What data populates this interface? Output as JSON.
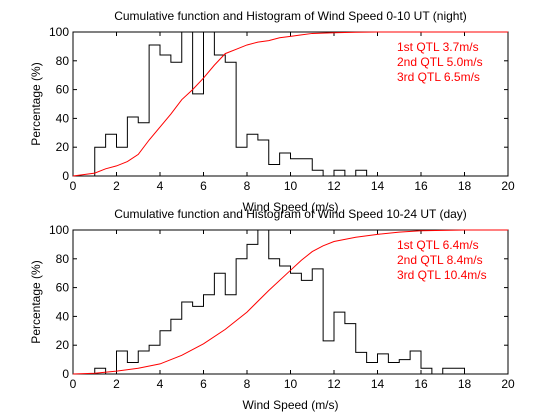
{
  "chart_data": [
    {
      "type": "line",
      "title": "Cumulative function and Histogram of Wind Speed 0-10 UT (night)",
      "xlabel": "Wind Speed (m/s)",
      "ylabel": "Percentage (%)",
      "xlim": [
        0,
        20
      ],
      "ylim": [
        0,
        100
      ],
      "xticks": [
        0,
        2,
        4,
        6,
        8,
        10,
        12,
        14,
        16,
        18,
        20
      ],
      "yticks": [
        0,
        20,
        40,
        60,
        80,
        100
      ],
      "grid": false,
      "annotations": [
        "1st QTL 3.7m/s",
        "2nd QTL 5.0m/s",
        "3rd QTL 6.5m/s"
      ],
      "annotation_color": "#ff0000",
      "series": [
        {
          "kind": "histogram-step",
          "color": "#000000",
          "bin_width": 0.5,
          "bin_starts": [
            1.0,
            1.5,
            2.0,
            2.5,
            3.0,
            3.5,
            4.0,
            4.5,
            5.0,
            5.5,
            6.0,
            6.5,
            7.0,
            7.5,
            8.0,
            8.5,
            9.0,
            9.5,
            10.0,
            10.5,
            11.0,
            11.5,
            12.0,
            12.5,
            13.0,
            13.5,
            14.0
          ],
          "values": [
            20,
            29,
            20,
            41,
            37,
            91,
            84,
            79,
            100,
            57,
            100,
            84,
            79,
            20,
            29,
            25,
            8,
            16,
            12,
            12,
            4,
            0,
            4,
            0,
            4,
            0,
            0
          ]
        },
        {
          "kind": "cumulative",
          "color": "#ff0000",
          "x": [
            0,
            1.0,
            1.5,
            2.0,
            2.5,
            3.0,
            3.5,
            4.0,
            4.5,
            5.0,
            5.5,
            6.0,
            6.5,
            7.0,
            7.5,
            8.0,
            8.5,
            9.0,
            9.5,
            10.0,
            10.5,
            11.0,
            12.0,
            13.0,
            14.0,
            20.0
          ],
          "y": [
            0,
            2,
            5,
            7,
            10,
            15,
            25,
            34,
            43,
            53,
            60,
            68,
            77,
            85,
            88,
            91,
            93,
            94,
            96,
            97,
            98,
            99,
            99.5,
            99.8,
            100,
            100
          ]
        }
      ]
    },
    {
      "type": "line",
      "title": "Cumulative function and Histogram of Wind Speed 10-24 UT (day)",
      "xlabel": "Wind Speed (m/s)",
      "ylabel": "Percentage (%)",
      "xlim": [
        0,
        20
      ],
      "ylim": [
        0,
        100
      ],
      "xticks": [
        0,
        2,
        4,
        6,
        8,
        10,
        12,
        14,
        16,
        18,
        20
      ],
      "yticks": [
        0,
        20,
        40,
        60,
        80,
        100
      ],
      "grid": false,
      "annotations": [
        "1st QTL 6.4m/s",
        "2nd QTL 8.4m/s",
        "3rd QTL 10.4m/s"
      ],
      "annotation_color": "#ff0000",
      "series": [
        {
          "kind": "histogram-step",
          "color": "#000000",
          "bin_width": 0.5,
          "bin_starts": [
            1.0,
            1.5,
            2.0,
            2.5,
            3.0,
            3.5,
            4.0,
            4.5,
            5.0,
            5.5,
            6.0,
            6.5,
            7.0,
            7.5,
            8.0,
            8.5,
            9.0,
            9.5,
            10.0,
            10.5,
            11.0,
            11.5,
            12.0,
            12.5,
            13.0,
            13.5,
            14.0,
            14.5,
            15.0,
            15.5,
            16.0,
            16.5,
            17.0,
            17.5,
            18.0
          ],
          "values": [
            4,
            0,
            16,
            8,
            16,
            20,
            30,
            38,
            50,
            47,
            55,
            70,
            55,
            80,
            90,
            100,
            80,
            75,
            70,
            65,
            73,
            23,
            43,
            35,
            15,
            8,
            14,
            8,
            10,
            16,
            4,
            0,
            4,
            4,
            0
          ]
        },
        {
          "kind": "cumulative",
          "color": "#ff0000",
          "x": [
            0,
            1.0,
            2.0,
            3.0,
            4.0,
            5.0,
            6.0,
            7.0,
            8.0,
            9.0,
            10.0,
            10.5,
            11.0,
            11.5,
            12.0,
            13.0,
            14.0,
            15.0,
            16.0,
            18.0,
            20.0
          ],
          "y": [
            0,
            0.5,
            2,
            4,
            7,
            13,
            21,
            31,
            43,
            58,
            72,
            79,
            85,
            89,
            92,
            95,
            97,
            98.5,
            99.5,
            100,
            100
          ]
        }
      ]
    }
  ]
}
